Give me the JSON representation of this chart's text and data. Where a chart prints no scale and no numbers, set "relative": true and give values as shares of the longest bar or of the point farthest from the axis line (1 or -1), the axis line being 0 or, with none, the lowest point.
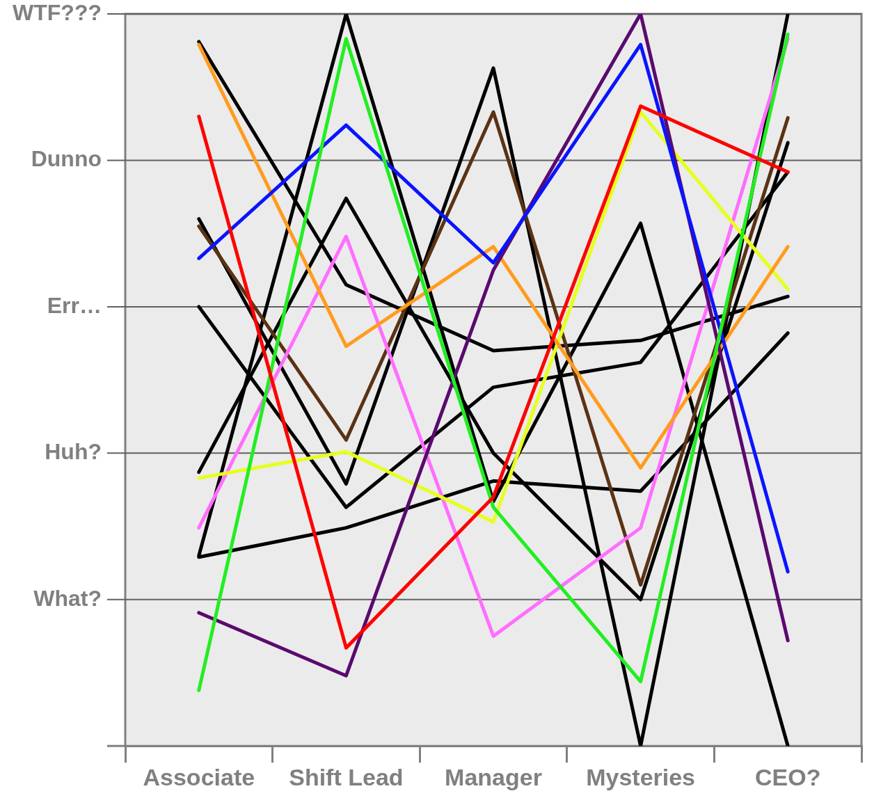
{
  "chart_data": {
    "type": "line",
    "categories": [
      "Associate",
      "Shift Lead",
      "Manager",
      "Mysteries",
      "CEO?"
    ],
    "relative": true,
    "legend": false,
    "marker": "none",
    "line_style": "solid",
    "ref_lines": [
      {
        "axis": "y",
        "value": 0.2,
        "label": "What?",
        "color": "#606060"
      },
      {
        "axis": "y",
        "value": 0.4,
        "label": "Huh?",
        "color": "#606060"
      },
      {
        "axis": "y",
        "value": 0.6,
        "label": "Err…",
        "color": "#606060"
      },
      {
        "axis": "y",
        "value": 0.8,
        "label": "Dunno",
        "color": "#606060"
      },
      {
        "axis": "y",
        "value": 1,
        "label": "WTF???",
        "color": "#606060"
      }
    ],
    "series": [
      {
        "color": "#ff0000",
        "values": [
          0.86,
          0.134,
          0.34,
          0.874,
          0.784
        ]
      },
      {
        "color": "#22ee22",
        "values": [
          0.076,
          0.966,
          0.326,
          0.088,
          0.972
        ]
      },
      {
        "color": "#0a14ff",
        "values": [
          0.666,
          0.848,
          0.66,
          0.958,
          0.238
        ]
      },
      {
        "color": "#5a0a6e",
        "values": [
          0.182,
          0.096,
          0.65,
          1,
          0.144
        ]
      },
      {
        "color": "#ff9c1e",
        "values": [
          0.958,
          0.546,
          0.682,
          0.38,
          0.682
        ]
      },
      {
        "color": "#e6ff1e",
        "values": [
          0.366,
          0.402,
          0.306,
          0.866,
          0.624
        ]
      },
      {
        "color": "#ff6eff",
        "values": [
          0.298,
          0.696,
          0.15,
          0.298,
          0.966
        ]
      },
      {
        "color": "#5a3214",
        "values": [
          0.71,
          0.418,
          0.866,
          0.22,
          0.858
        ]
      },
      {
        "color": "#000000",
        "values": [
          0.962,
          0.63,
          0.54,
          0.554,
          0.614
        ]
      },
      {
        "color": "#000000",
        "values": [
          0.26,
          1,
          0.334,
          0.714,
          0
        ]
      },
      {
        "color": "#000000",
        "values": [
          0.374,
          0.748,
          0.4,
          0.2,
          0.824
        ]
      },
      {
        "color": "#000000",
        "values": [
          0.6,
          0.326,
          0.49,
          0.524,
          0.784
        ]
      },
      {
        "color": "#000000",
        "values": [
          0.72,
          0.358,
          0.926,
          0,
          1
        ]
      },
      {
        "color": "#000000",
        "values": [
          0.258,
          0.298,
          0.362,
          0.348,
          0.564
        ]
      }
    ]
  }
}
